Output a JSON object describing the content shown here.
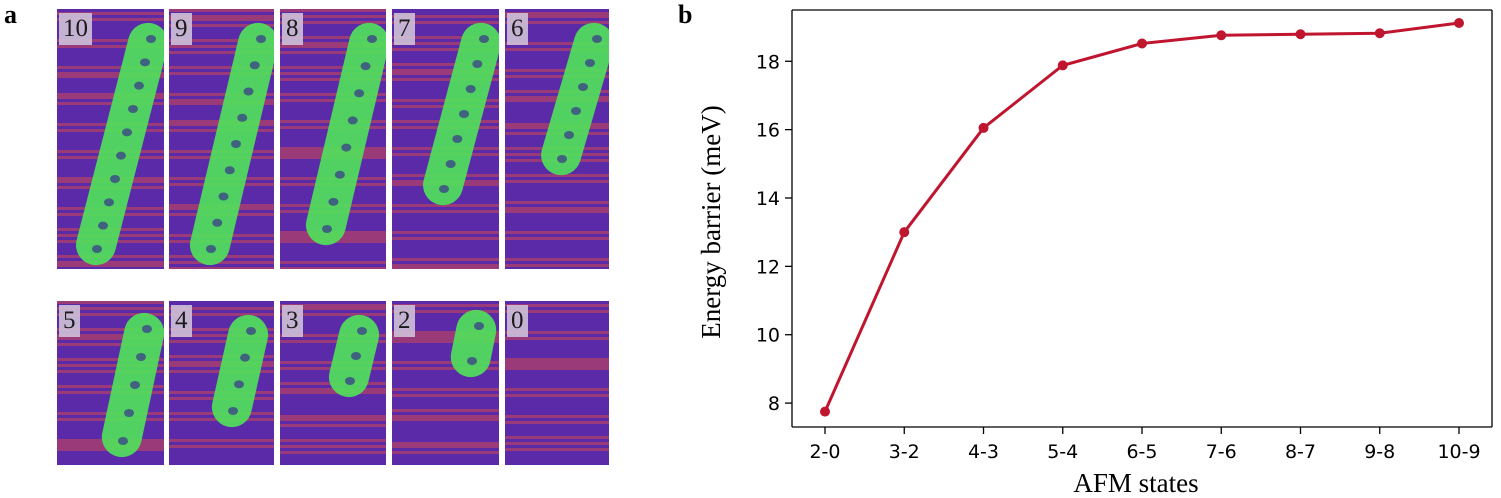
{
  "panels": {
    "a": "a",
    "b": "b"
  },
  "afm_images": {
    "top_row": [
      "10",
      "9",
      "8",
      "7",
      "6"
    ],
    "bottom_row": [
      "5",
      "4",
      "3",
      "2",
      "0"
    ]
  },
  "colors": {
    "line": "#c0152f",
    "marker": "#c0152f",
    "skyrmion": "#4fe35a",
    "background_stripe_a": "#5a2aa8",
    "background_stripe_b": "#9a3a78"
  },
  "chart_data": {
    "type": "line",
    "categories": [
      "2-0",
      "3-2",
      "4-3",
      "5-4",
      "6-5",
      "7-6",
      "8-7",
      "9-8",
      "10-9"
    ],
    "values": [
      7.75,
      13.0,
      16.05,
      17.88,
      18.52,
      18.76,
      18.79,
      18.82,
      19.12
    ],
    "xlabel": "AFM states",
    "ylabel": "Energy barrier (meV)",
    "ylim": [
      7.3,
      19.5
    ],
    "yticks": [
      8,
      10,
      12,
      14,
      16,
      18
    ],
    "ytick_labels": [
      "8",
      "10",
      "12",
      "14",
      "16",
      "18"
    ],
    "grid": false
  }
}
